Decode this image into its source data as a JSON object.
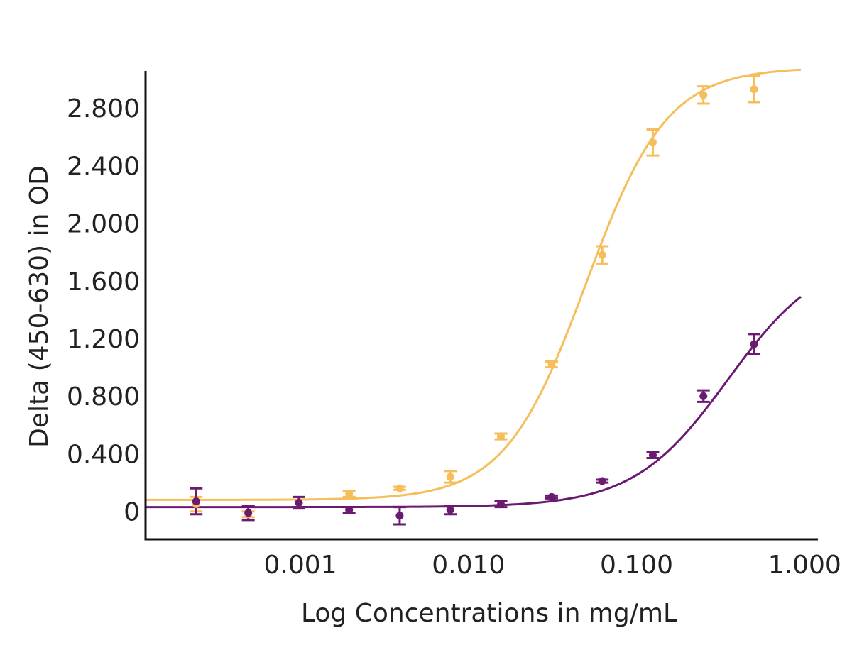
{
  "chart_data": {
    "type": "scatter",
    "title": "",
    "xlabel": "Log Concentrations in mg/mL",
    "ylabel": "Delta (450-630) in OD",
    "x_scale": "log",
    "xlim": [
      0.00012,
      0.95
    ],
    "ylim": [
      -0.1,
      3.15
    ],
    "xticks": [
      {
        "value": 0.001,
        "label": "0.001"
      },
      {
        "value": 0.01,
        "label": "0.010"
      },
      {
        "value": 0.1,
        "label": "0.100"
      },
      {
        "value": 1.0,
        "label": "1.000"
      }
    ],
    "yticks": [
      {
        "value": 0,
        "label": "0"
      },
      {
        "value": 0.4,
        "label": "0.400"
      },
      {
        "value": 0.8,
        "label": "0.800"
      },
      {
        "value": 1.2,
        "label": "1.200"
      },
      {
        "value": 1.6,
        "label": "1.600"
      },
      {
        "value": 2.0,
        "label": "2.000"
      },
      {
        "value": 2.4,
        "label": "2.400"
      },
      {
        "value": 2.8,
        "label": "2.800"
      }
    ],
    "grid": false,
    "legend": "none",
    "series": [
      {
        "color": "#F5BE5A",
        "points": [
          {
            "x": 0.00024,
            "y": 0.05,
            "err": 0.05
          },
          {
            "x": 0.00049,
            "y": -0.02,
            "err": 0.02
          },
          {
            "x": 0.00098,
            "y": 0.06,
            "err": 0.04
          },
          {
            "x": 0.00195,
            "y": 0.12,
            "err": 0.02
          },
          {
            "x": 0.0039,
            "y": 0.16,
            "err": 0.01
          },
          {
            "x": 0.0078,
            "y": 0.24,
            "err": 0.04
          },
          {
            "x": 0.0156,
            "y": 0.52,
            "err": 0.02
          },
          {
            "x": 0.03125,
            "y": 1.02,
            "err": 0.02
          },
          {
            "x": 0.0625,
            "y": 1.78,
            "err": 0.06
          },
          {
            "x": 0.125,
            "y": 2.56,
            "err": 0.09
          },
          {
            "x": 0.25,
            "y": 2.89,
            "err": 0.06
          },
          {
            "x": 0.5,
            "y": 2.93,
            "err": 0.09
          }
        ],
        "fit": {
          "bottom": 0.08,
          "top": 3.08,
          "ec50": 0.05,
          "hill": 1.8
        }
      },
      {
        "color": "#6B1A72",
        "points": [
          {
            "x": 0.00024,
            "y": 0.07,
            "err": 0.09
          },
          {
            "x": 0.00049,
            "y": -0.01,
            "err": 0.05
          },
          {
            "x": 0.00098,
            "y": 0.06,
            "err": 0.04
          },
          {
            "x": 0.00195,
            "y": 0.01,
            "err": 0.02
          },
          {
            "x": 0.0039,
            "y": -0.03,
            "err": 0.06
          },
          {
            "x": 0.0078,
            "y": 0.01,
            "err": 0.03
          },
          {
            "x": 0.0156,
            "y": 0.05,
            "err": 0.02
          },
          {
            "x": 0.03125,
            "y": 0.1,
            "err": 0.01
          },
          {
            "x": 0.0625,
            "y": 0.21,
            "err": 0.01
          },
          {
            "x": 0.125,
            "y": 0.39,
            "err": 0.02
          },
          {
            "x": 0.25,
            "y": 0.8,
            "err": 0.04
          },
          {
            "x": 0.5,
            "y": 1.16,
            "err": 0.07
          }
        ],
        "fit": {
          "bottom": 0.03,
          "top": 1.8,
          "ec50": 0.35,
          "hill": 1.55
        }
      }
    ]
  }
}
